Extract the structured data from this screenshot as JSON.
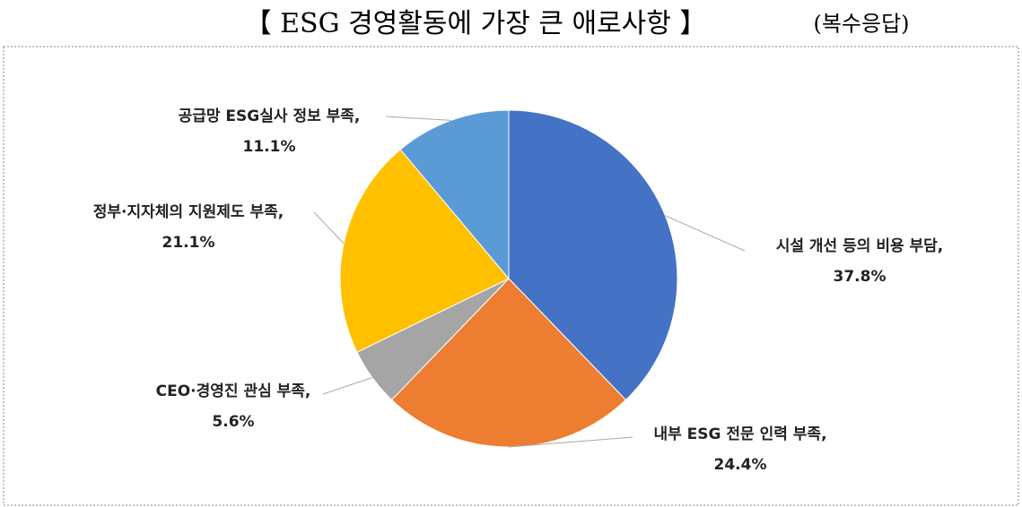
{
  "chart_data": {
    "type": "pie",
    "title": "【 ESG 경영활동에 가장 큰 애로사항 】",
    "subtitle": "(복수응답)",
    "categories": [
      "시설 개선 등의 비용 부담,",
      "내부 ESG 전문 인력 부족,",
      "CEO·경영진 관심 부족,",
      "정부·지자체의 지원제도 부족,",
      "공급망 ESG실사 정보 부족,"
    ],
    "values": [
      37.8,
      24.4,
      5.6,
      21.1,
      11.1
    ],
    "value_labels": [
      "37.8%",
      "24.4%",
      "5.6%",
      "21.1%",
      "11.1%"
    ],
    "colors": [
      "#4472c4",
      "#ed7d31",
      "#a5a5a5",
      "#ffc000",
      "#5b9bd5"
    ]
  }
}
